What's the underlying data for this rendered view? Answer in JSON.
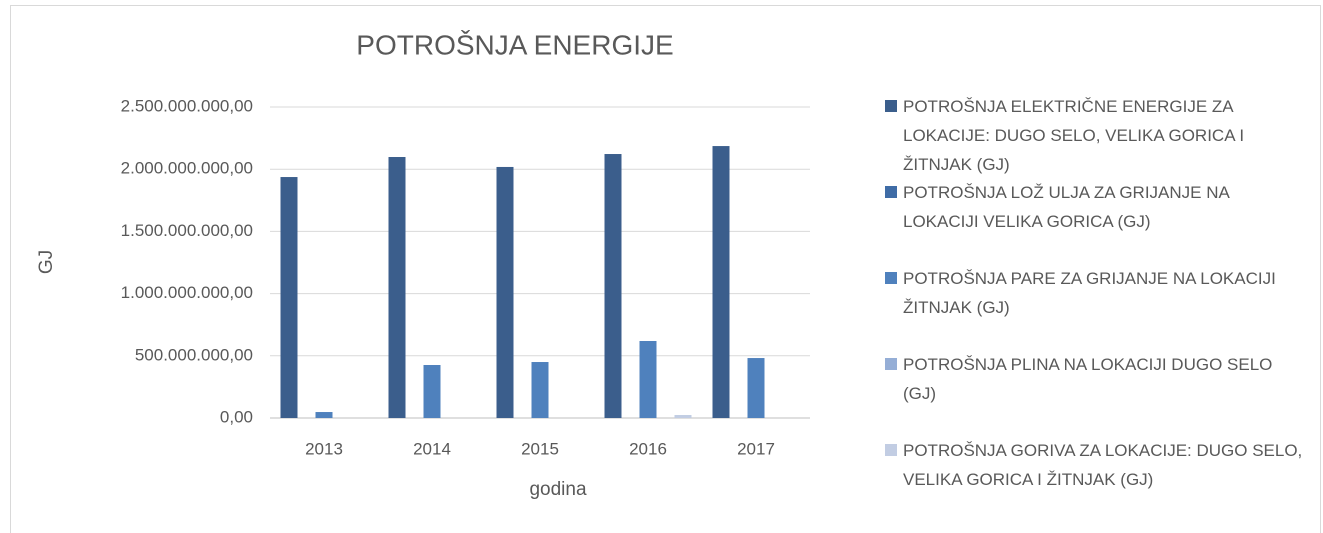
{
  "chart_data": {
    "type": "bar",
    "title": "POTROŠNJA ENERGIJE",
    "y_label": "GJ",
    "x_label": "godina",
    "categories": [
      "2013",
      "2014",
      "2015",
      "2016",
      "2017"
    ],
    "series": [
      {
        "name": "POTROŠNJA ELEKTRIČNE ENERGIJE ZA LOKACIJE: DUGO SELO, VELIKA GORICA I ŽITNJAK (GJ)",
        "color": "#3b5e8c",
        "values": [
          1937000000,
          2098000000,
          2018000000,
          2122000000,
          2186000000
        ]
      },
      {
        "name": "POTROŠNJA LOŽ ULJA ZA GRIJANJE NA LOKACIJI VELIKA GORICA (GJ)",
        "color": "#3f6ca6",
        "values": [
          0,
          0,
          0,
          0,
          0
        ]
      },
      {
        "name": "POTROŠNJA PARE ZA GRIJANJE NA LOKACIJI ŽITNJAK (GJ)",
        "color": "#4f81bd",
        "values": [
          48000000,
          426000000,
          450000000,
          619000000,
          482000000
        ]
      },
      {
        "name": "POTROŠNJA PLINA NA LOKACIJI DUGO SELO (GJ)",
        "color": "#95aed6",
        "values": [
          0,
          0,
          0,
          0,
          0
        ]
      },
      {
        "name": "POTROŠNJA GORIVA ZA LOKACIJE: DUGO SELO, VELIKA GORICA I ŽITNJAK (GJ)",
        "color": "#c2cde3",
        "values": [
          0,
          0,
          0,
          24000000,
          0
        ]
      }
    ],
    "ylim": [
      0,
      2500000000
    ],
    "yticks": [
      {
        "value": 0,
        "label": "0,00"
      },
      {
        "value": 500000000,
        "label": "500.000.000,00"
      },
      {
        "value": 1000000000,
        "label": "1.000.000.000,00"
      },
      {
        "value": 1500000000,
        "label": "1.500.000.000,00"
      },
      {
        "value": 2000000000,
        "label": "2.000.000.000,00"
      },
      {
        "value": 2500000000,
        "label": "2.500.000.000,00"
      }
    ],
    "grid": true,
    "legend": "right"
  }
}
